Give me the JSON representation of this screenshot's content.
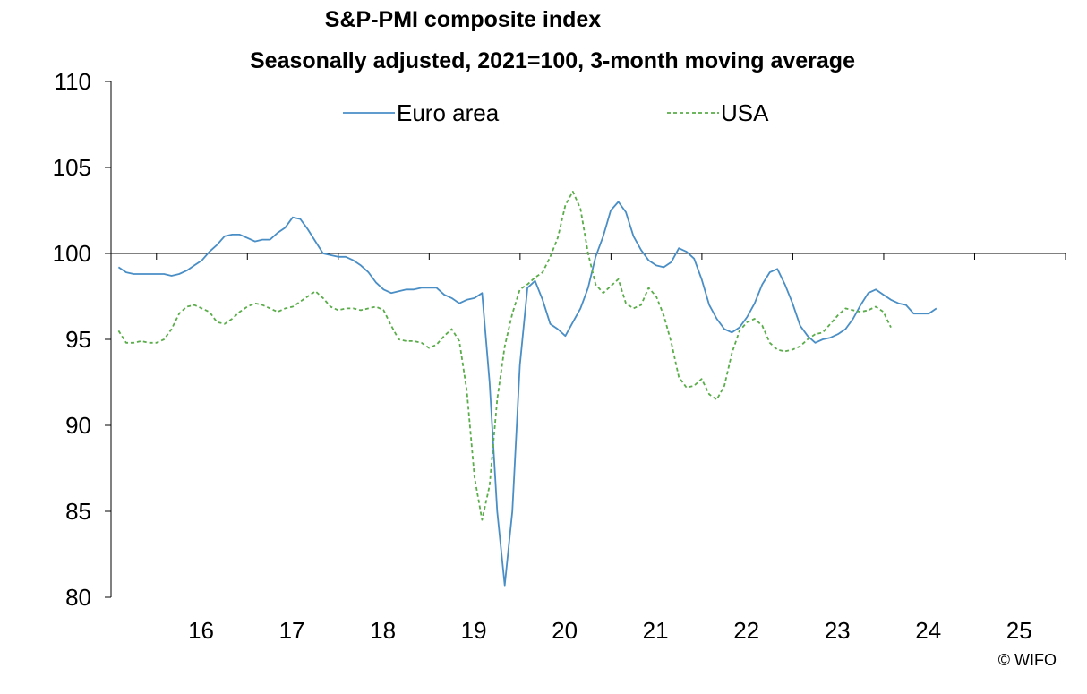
{
  "chart_data": {
    "type": "line",
    "title": "S&P-PMI composite index",
    "subtitle": "Seasonally adjusted, 2021=100, 3-month moving average",
    "xlabel": "",
    "ylabel": "",
    "ylim": [
      80,
      110
    ],
    "yticks": [
      "80",
      "85",
      "90",
      "95",
      "100",
      "105",
      "110"
    ],
    "xticks": [
      "16",
      "17",
      "18",
      "19",
      "20",
      "21",
      "22",
      "23",
      "24",
      "25"
    ],
    "xlim": [
      2015.5,
      2026.0
    ],
    "reference_line": 100,
    "series": [
      {
        "name": "Euro area",
        "color": "#4a8ec6",
        "style": "solid",
        "x_start": 2015.583,
        "x_step": 0.0833,
        "values": [
          99.2,
          98.9,
          98.8,
          98.8,
          98.8,
          98.8,
          98.8,
          98.7,
          98.8,
          99.0,
          99.3,
          99.6,
          100.1,
          100.5,
          101.0,
          101.1,
          101.1,
          100.9,
          100.7,
          100.8,
          100.8,
          101.2,
          101.5,
          102.1,
          102.0,
          101.4,
          100.7,
          100.0,
          99.9,
          99.8,
          99.8,
          99.6,
          99.3,
          98.9,
          98.3,
          97.9,
          97.7,
          97.8,
          97.9,
          97.9,
          98.0,
          98.0,
          98.0,
          97.6,
          97.4,
          97.1,
          97.3,
          97.4,
          97.7,
          92.5,
          85.0,
          80.7,
          85.0,
          93.5,
          98.0,
          98.4,
          97.3,
          95.9,
          95.6,
          95.2,
          96.0,
          96.8,
          98.0,
          99.8,
          101.0,
          102.5,
          103.0,
          102.4,
          101.0,
          100.2,
          99.6,
          99.3,
          99.2,
          99.5,
          100.3,
          100.1,
          99.7,
          98.5,
          97.0,
          96.2,
          95.6,
          95.4,
          95.7,
          96.3,
          97.1,
          98.2,
          98.9,
          99.1,
          98.2,
          97.1,
          95.8,
          95.2,
          94.8,
          95.0,
          95.1,
          95.3,
          95.6,
          96.2,
          97.0,
          97.7,
          97.9,
          97.6,
          97.3,
          97.1,
          97.0,
          96.5,
          96.5,
          96.5,
          96.8
        ]
      },
      {
        "name": "USA",
        "color": "#5aad4a",
        "style": "dashed",
        "x_start": 2015.583,
        "x_step": 0.0833,
        "values": [
          95.5,
          94.8,
          94.8,
          94.9,
          94.8,
          94.8,
          95.0,
          95.6,
          96.5,
          96.9,
          97.0,
          96.8,
          96.6,
          96.0,
          95.9,
          96.2,
          96.6,
          96.9,
          97.1,
          97.0,
          96.8,
          96.6,
          96.8,
          96.9,
          97.2,
          97.5,
          97.8,
          97.4,
          96.9,
          96.7,
          96.8,
          96.8,
          96.7,
          96.8,
          96.9,
          96.7,
          95.8,
          95.0,
          94.9,
          94.9,
          94.8,
          94.5,
          94.7,
          95.2,
          95.6,
          94.9,
          92.0,
          87.0,
          84.5,
          86.5,
          91.5,
          94.6,
          96.5,
          97.9,
          98.2,
          98.6,
          98.9,
          99.8,
          100.9,
          102.8,
          103.6,
          102.6,
          100.0,
          98.2,
          97.7,
          98.1,
          98.5,
          97.1,
          96.8,
          97.0,
          98.0,
          97.5,
          96.4,
          94.8,
          92.8,
          92.2,
          92.3,
          92.7,
          91.8,
          91.5,
          92.3,
          94.2,
          95.5,
          96.0,
          96.2,
          95.8,
          94.8,
          94.4,
          94.3,
          94.4,
          94.6,
          95.0,
          95.3,
          95.4,
          95.9,
          96.4,
          96.8,
          96.7,
          96.6,
          96.7,
          96.9,
          96.6,
          95.7
        ]
      }
    ],
    "legend": {
      "position": "top",
      "entries": [
        "Euro area",
        "USA"
      ]
    }
  },
  "credit": "© WIFO"
}
